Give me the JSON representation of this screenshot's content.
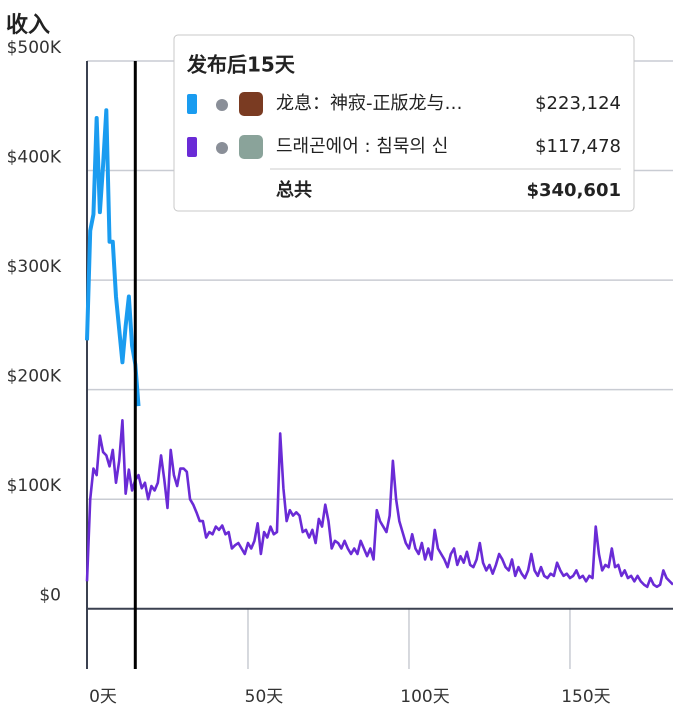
{
  "chart_data": {
    "type": "line",
    "title": "收入",
    "xlim": [
      0,
      182
    ],
    "ylim": [
      -55000,
      500000
    ],
    "yticks": [
      {
        "value": 0,
        "label": "$0"
      },
      {
        "value": 100000,
        "label": "$100K"
      },
      {
        "value": 200000,
        "label": "$200K"
      },
      {
        "value": 300000,
        "label": "$300K"
      },
      {
        "value": 400000,
        "label": "$400K"
      },
      {
        "value": 500000,
        "label": "$500K"
      }
    ],
    "xticks": [
      {
        "value": 0,
        "label": "0天"
      },
      {
        "value": 50,
        "label": "50天"
      },
      {
        "value": 100,
        "label": "100天"
      },
      {
        "value": 150,
        "label": "150天"
      }
    ],
    "grid": true,
    "cursor": 15,
    "series": [
      {
        "name": "龙息：神寂-正版龙与…",
        "color": "#1a9cf0",
        "x": [
          0,
          1,
          2,
          3,
          4,
          5,
          6,
          7,
          8,
          9,
          10,
          11,
          12,
          13,
          14,
          15,
          16
        ],
        "values": [
          245000,
          345000,
          360000,
          448000,
          362000,
          405000,
          455000,
          335000,
          335000,
          285000,
          255000,
          225000,
          258000,
          285000,
          240000,
          223124,
          185000
        ]
      },
      {
        "name": "드래곤에어 : 침묵의 신",
        "color": "#6a2bd6",
        "x": [
          0,
          1,
          2,
          3,
          4,
          5,
          6,
          7,
          8,
          9,
          10,
          11,
          12,
          13,
          14,
          15,
          16,
          17,
          18,
          19,
          20,
          21,
          22,
          23,
          24,
          25,
          26,
          27,
          28,
          29,
          30,
          31,
          32,
          33,
          34,
          35,
          36,
          37,
          38,
          39,
          40,
          41,
          42,
          43,
          44,
          45,
          46,
          47,
          48,
          49,
          50,
          51,
          52,
          53,
          54,
          55,
          56,
          57,
          58,
          59,
          60,
          61,
          62,
          63,
          64,
          65,
          66,
          67,
          68,
          69,
          70,
          71,
          72,
          73,
          74,
          75,
          76,
          77,
          78,
          79,
          80,
          81,
          82,
          83,
          84,
          85,
          86,
          87,
          88,
          89,
          90,
          91,
          92,
          93,
          94,
          95,
          96,
          97,
          98,
          99,
          100,
          101,
          102,
          103,
          104,
          105,
          106,
          107,
          108,
          109,
          110,
          111,
          112,
          113,
          114,
          115,
          116,
          117,
          118,
          119,
          120,
          121,
          122,
          123,
          124,
          125,
          126,
          127,
          128,
          129,
          130,
          131,
          132,
          133,
          134,
          135,
          136,
          137,
          138,
          139,
          140,
          141,
          142,
          143,
          144,
          145,
          146,
          147,
          148,
          149,
          150,
          151,
          152,
          153,
          154,
          155,
          156,
          157,
          158,
          159,
          160,
          161,
          162,
          163,
          164,
          165,
          166,
          167,
          168,
          169,
          170,
          171,
          172,
          173,
          174,
          175,
          176,
          177,
          178,
          179,
          180,
          181,
          182
        ],
        "values": [
          25000,
          100000,
          128000,
          122000,
          158000,
          143000,
          140000,
          130000,
          145000,
          115000,
          135000,
          172000,
          105000,
          127000,
          108000,
          117478,
          122000,
          110000,
          115000,
          100000,
          112000,
          108000,
          115000,
          140000,
          118000,
          92000,
          145000,
          122000,
          112000,
          128000,
          128000,
          125000,
          100000,
          95000,
          88000,
          80000,
          80000,
          65000,
          70000,
          68000,
          75000,
          72000,
          76000,
          68000,
          70000,
          55000,
          58000,
          60000,
          55000,
          50000,
          60000,
          55000,
          62000,
          78000,
          50000,
          70000,
          65000,
          75000,
          68000,
          70000,
          160000,
          110000,
          80000,
          90000,
          85000,
          88000,
          85000,
          70000,
          72000,
          65000,
          72000,
          60000,
          82000,
          75000,
          95000,
          80000,
          55000,
          62000,
          60000,
          55000,
          62000,
          55000,
          50000,
          55000,
          50000,
          62000,
          55000,
          48000,
          55000,
          45000,
          90000,
          80000,
          75000,
          70000,
          85000,
          135000,
          100000,
          80000,
          70000,
          60000,
          55000,
          68000,
          55000,
          50000,
          60000,
          45000,
          55000,
          45000,
          72000,
          55000,
          50000,
          45000,
          38000,
          50000,
          55000,
          40000,
          48000,
          42000,
          52000,
          40000,
          38000,
          45000,
          60000,
          42000,
          35000,
          40000,
          32000,
          40000,
          50000,
          45000,
          38000,
          35000,
          45000,
          30000,
          38000,
          32000,
          28000,
          35000,
          50000,
          35000,
          30000,
          38000,
          30000,
          28000,
          32000,
          30000,
          42000,
          35000,
          30000,
          32000,
          28000,
          30000,
          35000,
          28000,
          30000,
          25000,
          30000,
          28000,
          75000,
          50000,
          35000,
          40000,
          38000,
          55000,
          38000,
          40000,
          30000,
          35000,
          28000,
          30000,
          25000,
          30000,
          25000,
          22000,
          20000,
          28000,
          22000,
          20000,
          22000,
          35000,
          28000,
          25000,
          22000
        ]
      }
    ],
    "tooltip": {
      "title": "发布后15天",
      "values": [
        "$223,124",
        "$117,478"
      ],
      "total_label": "总共",
      "total": "$340,601"
    }
  }
}
